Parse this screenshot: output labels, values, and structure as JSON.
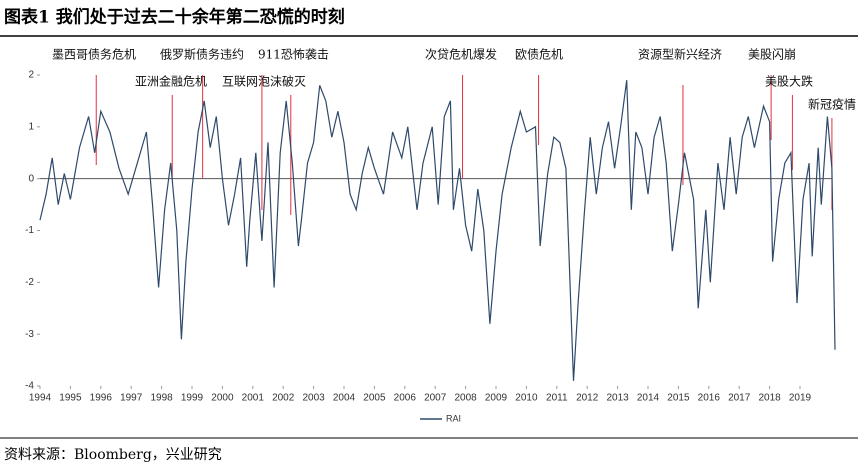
{
  "chart_data": {
    "type": "line",
    "title": "图表1  我们处于过去二十余年第二恐慌的时刻",
    "source": "资料来源：Bloomberg，兴业研究",
    "xlim": [
      1994,
      2020.25
    ],
    "xticks": [
      1994,
      1995,
      1996,
      1997,
      1998,
      1999,
      2000,
      2001,
      2002,
      2003,
      2004,
      2005,
      2006,
      2007,
      2008,
      2009,
      2010,
      2011,
      2012,
      2013,
      2014,
      2015,
      2016,
      2017,
      2018,
      2019
    ],
    "ylim": [
      -4,
      2
    ],
    "yticks": [
      -4,
      -3,
      -2,
      -1,
      0,
      1,
      2
    ],
    "legend": "bottom",
    "series": [
      {
        "name": "RAI",
        "color": "#2e4a6b",
        "x": [
          1994.0,
          1994.2,
          1994.4,
          1994.6,
          1994.8,
          1995.0,
          1995.3,
          1995.6,
          1995.8,
          1996.0,
          1996.3,
          1996.6,
          1996.9,
          1997.2,
          1997.5,
          1997.7,
          1997.9,
          1998.1,
          1998.3,
          1998.5,
          1998.65,
          1998.8,
          1999.0,
          1999.2,
          1999.4,
          1999.6,
          1999.8,
          2000.0,
          2000.2,
          2000.4,
          2000.6,
          2000.8,
          2000.9,
          2001.1,
          2001.3,
          2001.5,
          2001.7,
          2001.9,
          2002.1,
          2002.3,
          2002.5,
          2002.6,
          2002.8,
          2003.0,
          2003.2,
          2003.4,
          2003.6,
          2003.8,
          2004.0,
          2004.2,
          2004.4,
          2004.6,
          2004.8,
          2005.0,
          2005.3,
          2005.6,
          2005.9,
          2006.1,
          2006.4,
          2006.6,
          2006.9,
          2007.1,
          2007.3,
          2007.5,
          2007.6,
          2007.8,
          2008.0,
          2008.2,
          2008.4,
          2008.6,
          2008.8,
          2009.0,
          2009.2,
          2009.5,
          2009.8,
          2010.0,
          2010.3,
          2010.45,
          2010.7,
          2010.9,
          2011.1,
          2011.3,
          2011.55,
          2011.7,
          2011.9,
          2012.1,
          2012.3,
          2012.5,
          2012.7,
          2012.9,
          2013.1,
          2013.3,
          2013.45,
          2013.6,
          2013.8,
          2014.0,
          2014.2,
          2014.4,
          2014.6,
          2014.8,
          2015.0,
          2015.2,
          2015.5,
          2015.65,
          2015.9,
          2016.05,
          2016.3,
          2016.5,
          2016.7,
          2016.9,
          2017.1,
          2017.3,
          2017.5,
          2017.8,
          2018.0,
          2018.1,
          2018.3,
          2018.5,
          2018.7,
          2018.9,
          2019.1,
          2019.3,
          2019.4,
          2019.6,
          2019.7,
          2019.9,
          2020.05,
          2020.15
        ],
        "values": [
          -0.8,
          -0.3,
          0.4,
          -0.5,
          0.1,
          -0.4,
          0.6,
          1.2,
          0.5,
          1.3,
          0.9,
          0.2,
          -0.3,
          0.3,
          0.9,
          -0.5,
          -2.1,
          -0.6,
          0.3,
          -1.0,
          -3.1,
          -1.6,
          -0.2,
          0.9,
          1.5,
          0.6,
          1.2,
          0.0,
          -0.9,
          -0.3,
          0.4,
          -1.7,
          -0.8,
          0.5,
          -1.2,
          0.7,
          -2.1,
          0.5,
          1.5,
          0.3,
          -1.3,
          -0.8,
          0.3,
          0.7,
          1.8,
          1.5,
          0.8,
          1.3,
          0.7,
          -0.3,
          -0.6,
          0.1,
          0.6,
          0.2,
          -0.3,
          0.9,
          0.4,
          1.0,
          -0.6,
          0.3,
          1.0,
          -0.5,
          1.2,
          1.5,
          -0.6,
          0.2,
          -0.9,
          -1.4,
          -0.2,
          -1.0,
          -2.8,
          -1.4,
          -0.3,
          0.6,
          1.3,
          0.9,
          1.0,
          -1.3,
          0.1,
          0.8,
          0.7,
          0.2,
          -3.9,
          -2.4,
          -0.7,
          0.8,
          -0.3,
          0.6,
          1.1,
          0.2,
          1.0,
          1.9,
          -0.6,
          0.9,
          0.6,
          -0.3,
          0.8,
          1.2,
          0.3,
          -1.4,
          -0.5,
          0.5,
          -0.4,
          -2.5,
          -0.6,
          -2.0,
          0.3,
          -0.6,
          0.8,
          -0.3,
          0.8,
          1.2,
          0.6,
          1.4,
          1.1,
          -1.6,
          -0.4,
          0.3,
          0.5,
          -2.4,
          -0.4,
          0.3,
          -1.5,
          0.6,
          -0.5,
          1.2,
          0.2,
          -3.3
        ]
      }
    ],
    "annotations": [
      {
        "text": "墨西哥债务危机",
        "x": 1995.85
      },
      {
        "text": "亚洲金融危机",
        "x": 1998.35
      },
      {
        "text": "俄罗斯债务违约",
        "x": 1999.35
      },
      {
        "text": "911恐怖袭击",
        "x": 2001.3
      },
      {
        "text": "互联网泡沫破灭",
        "x": 2002.25
      },
      {
        "text": "次贷危机爆发",
        "x": 2007.9
      },
      {
        "text": "欧债危机",
        "x": 2010.4
      },
      {
        "text": "资源型新兴经济",
        "x": 2015.15
      },
      {
        "text": "美股闪崩",
        "x": 2018.05
      },
      {
        "text": "美股大跌",
        "x": 2018.75
      },
      {
        "text": "新冠疫情",
        "x": 2020.05
      }
    ]
  }
}
